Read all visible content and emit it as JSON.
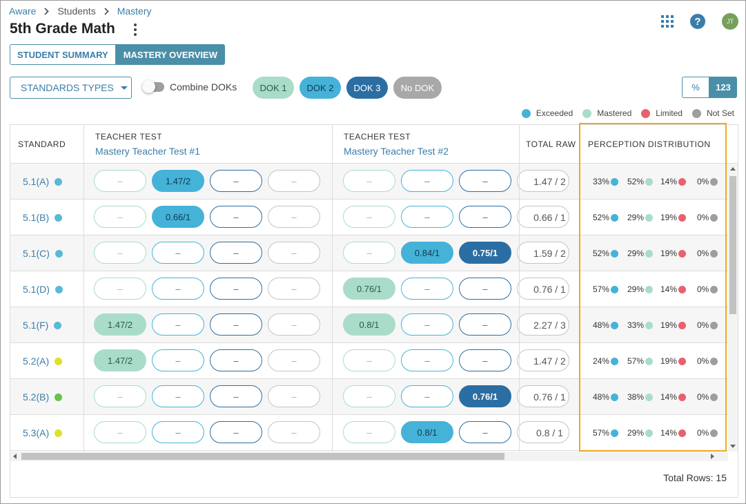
{
  "breadcrumb": [
    "Aware",
    "Students",
    "Mastery"
  ],
  "page_title": "5th Grade Math",
  "header": {
    "avatar_initials": "JT",
    "help_label": "?"
  },
  "view_tabs": [
    "STUDENT SUMMARY",
    "MASTERY OVERVIEW"
  ],
  "filters": {
    "standards_types_label": "STANDARDS TYPES",
    "combine_doks_label": "Combine DOKs",
    "dok_chips": [
      "DOK 1",
      "DOK 2",
      "DOK 3",
      "No DOK"
    ]
  },
  "units": {
    "percent": "%",
    "raw": "123"
  },
  "legend": [
    {
      "label": "Exceeded",
      "color": "#45b2d8"
    },
    {
      "label": "Mastered",
      "color": "#a9dcc9"
    },
    {
      "label": "Limited",
      "color": "#e8616c"
    },
    {
      "label": "Not Set",
      "color": "#9e9e9e"
    }
  ],
  "table": {
    "col_standard": "STANDARD",
    "tests": [
      {
        "type": "TEACHER TEST",
        "name": "Mastery Teacher Test #1"
      },
      {
        "type": "TEACHER TEST",
        "name": "Mastery Teacher Test #2"
      }
    ],
    "col_total_raw": "TOTAL RAW",
    "col_perception": "PERCEPTION DISTRIBUTION",
    "rows": [
      {
        "standard": "5.1(A)",
        "dot_color": "#5bb8d8",
        "t1": [
          "–",
          "1.47/2",
          "–",
          "–"
        ],
        "t2": [
          "–",
          "–",
          "–"
        ],
        "total": "1.47 / 2",
        "perc": [
          "33%",
          "52%",
          "14%",
          "0%"
        ]
      },
      {
        "standard": "5.1(B)",
        "dot_color": "#5bb8d8",
        "t1": [
          "–",
          "0.66/1",
          "–",
          "–"
        ],
        "t2": [
          "–",
          "–",
          "–"
        ],
        "total": "0.66 / 1",
        "perc": [
          "52%",
          "29%",
          "19%",
          "0%"
        ]
      },
      {
        "standard": "5.1(C)",
        "dot_color": "#5bb8d8",
        "t1": [
          "–",
          "–",
          "–",
          "–"
        ],
        "t2": [
          "–",
          "0.84/1",
          "0.75/1"
        ],
        "total": "1.59 / 2",
        "perc": [
          "52%",
          "29%",
          "19%",
          "0%"
        ]
      },
      {
        "standard": "5.1(D)",
        "dot_color": "#5bb8d8",
        "t1": [
          "–",
          "–",
          "–",
          "–"
        ],
        "t2": [
          "0.76/1",
          "–",
          "–"
        ],
        "total": "0.76 / 1",
        "perc": [
          "57%",
          "29%",
          "14%",
          "0%"
        ]
      },
      {
        "standard": "5.1(F)",
        "dot_color": "#5bb8d8",
        "t1": [
          "1.47/2",
          "–",
          "–",
          "–"
        ],
        "t2": [
          "0.8/1",
          "–",
          "–"
        ],
        "total": "2.27 / 3",
        "perc": [
          "48%",
          "33%",
          "19%",
          "0%"
        ]
      },
      {
        "standard": "5.2(A)",
        "dot_color": "#dfe02a",
        "t1": [
          "1.47/2",
          "–",
          "–",
          "–"
        ],
        "t2": [
          "–",
          "–",
          "–"
        ],
        "total": "1.47 / 2",
        "perc": [
          "24%",
          "57%",
          "19%",
          "0%"
        ]
      },
      {
        "standard": "5.2(B)",
        "dot_color": "#63c34a",
        "t1": [
          "–",
          "–",
          "–",
          "–"
        ],
        "t2": [
          "–",
          "–",
          "0.76/1"
        ],
        "total": "0.76 / 1",
        "perc": [
          "48%",
          "38%",
          "14%",
          "0%"
        ]
      },
      {
        "standard": "5.3(A)",
        "dot_color": "#dfe02a",
        "t1": [
          "–",
          "–",
          "–",
          "–"
        ],
        "t2": [
          "–",
          "0.8/1",
          "–"
        ],
        "total": "0.8 / 1",
        "perc": [
          "57%",
          "29%",
          "14%",
          "0%"
        ]
      }
    ]
  },
  "footer": {
    "total_rows": "Total Rows: 15"
  }
}
